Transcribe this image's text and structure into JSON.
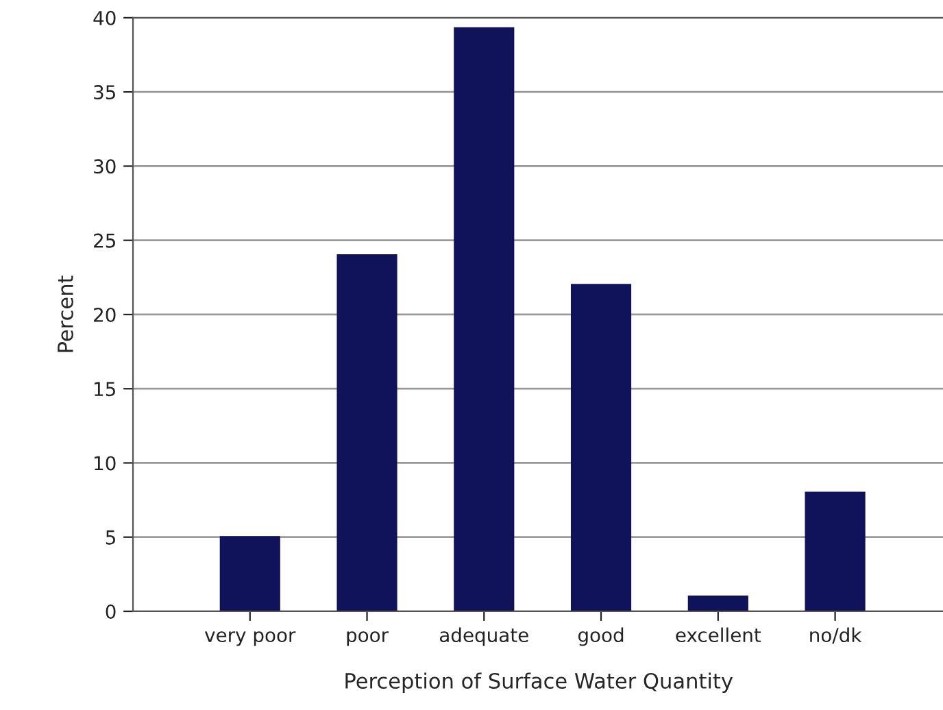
{
  "chart_data": {
    "type": "bar",
    "xlabel": "Perception of Surface Water Quantity",
    "ylabel": "Percent",
    "categories": [
      "very poor",
      "poor",
      "adequate",
      "good",
      "excellent",
      "no/dk"
    ],
    "values": [
      5,
      24,
      39.3,
      22,
      1,
      8
    ],
    "color": "#10135a",
    "ylim": [
      0,
      40
    ],
    "yticks": [
      0,
      5,
      10,
      15,
      20,
      25,
      30,
      35,
      40
    ],
    "grid": "y",
    "legend": false
  }
}
